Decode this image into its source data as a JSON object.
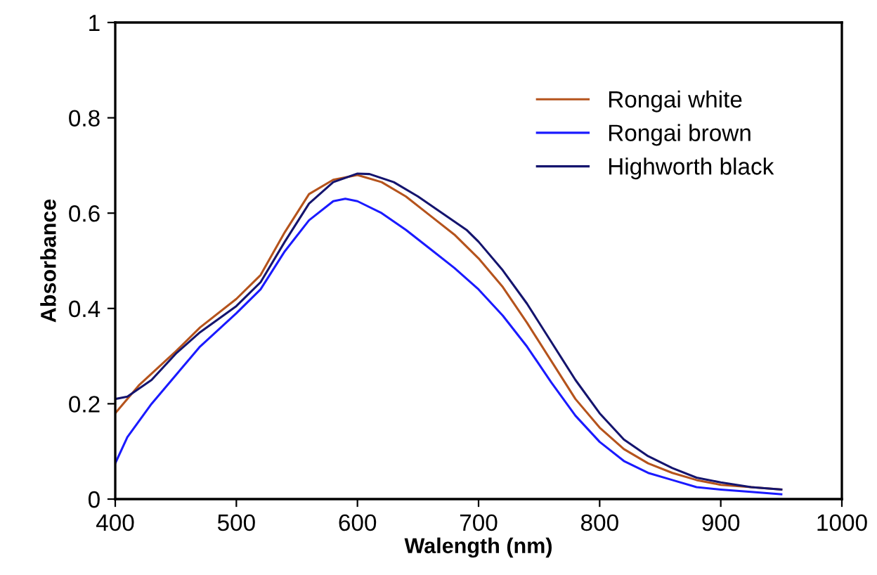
{
  "chart_data": {
    "type": "line",
    "xlabel": "Walength (nm)",
    "ylabel": "Absorbance",
    "xlim": [
      400,
      1000
    ],
    "xticks": [
      400,
      500,
      600,
      700,
      800,
      900,
      1000
    ],
    "ylim": [
      0,
      1
    ],
    "yticks": [
      0,
      0.2,
      0.4,
      0.6,
      0.8,
      1
    ],
    "grid": false,
    "legend": "top right",
    "marker": "none",
    "line_style": "solid",
    "series": [
      {
        "name": "Rongai white",
        "color": "#b5531c",
        "x": [
          400,
          420,
          450,
          470,
          500,
          520,
          540,
          560,
          580,
          600,
          620,
          640,
          660,
          680,
          700,
          720,
          740,
          760,
          780,
          800,
          820,
          840,
          860,
          880,
          900,
          925,
          950
        ],
        "values": [
          0.18,
          0.24,
          0.31,
          0.36,
          0.42,
          0.47,
          0.56,
          0.64,
          0.67,
          0.68,
          0.665,
          0.635,
          0.595,
          0.555,
          0.505,
          0.445,
          0.37,
          0.29,
          0.21,
          0.15,
          0.105,
          0.075,
          0.055,
          0.04,
          0.03,
          0.025,
          0.02
        ]
      },
      {
        "name": "Rongai brown",
        "color": "#1a1aff",
        "x": [
          400,
          410,
          430,
          450,
          470,
          500,
          520,
          540,
          560,
          580,
          590,
          600,
          620,
          640,
          660,
          680,
          700,
          720,
          740,
          760,
          780,
          800,
          820,
          840,
          860,
          880,
          900,
          925,
          950
        ],
        "values": [
          0.075,
          0.13,
          0.2,
          0.26,
          0.32,
          0.39,
          0.44,
          0.52,
          0.585,
          0.625,
          0.63,
          0.625,
          0.6,
          0.565,
          0.525,
          0.485,
          0.44,
          0.385,
          0.32,
          0.245,
          0.175,
          0.12,
          0.08,
          0.055,
          0.04,
          0.025,
          0.02,
          0.015,
          0.01
        ]
      },
      {
        "name": "Highworth black",
        "color": "#14146e",
        "x": [
          400,
          410,
          430,
          450,
          470,
          500,
          520,
          540,
          560,
          580,
          600,
          610,
          630,
          650,
          670,
          690,
          700,
          720,
          740,
          760,
          780,
          800,
          820,
          840,
          860,
          880,
          900,
          925,
          950
        ],
        "values": [
          0.21,
          0.215,
          0.25,
          0.305,
          0.35,
          0.405,
          0.455,
          0.54,
          0.62,
          0.665,
          0.683,
          0.682,
          0.665,
          0.635,
          0.6,
          0.565,
          0.54,
          0.48,
          0.41,
          0.33,
          0.25,
          0.18,
          0.125,
          0.09,
          0.065,
          0.045,
          0.035,
          0.025,
          0.02
        ]
      }
    ]
  }
}
